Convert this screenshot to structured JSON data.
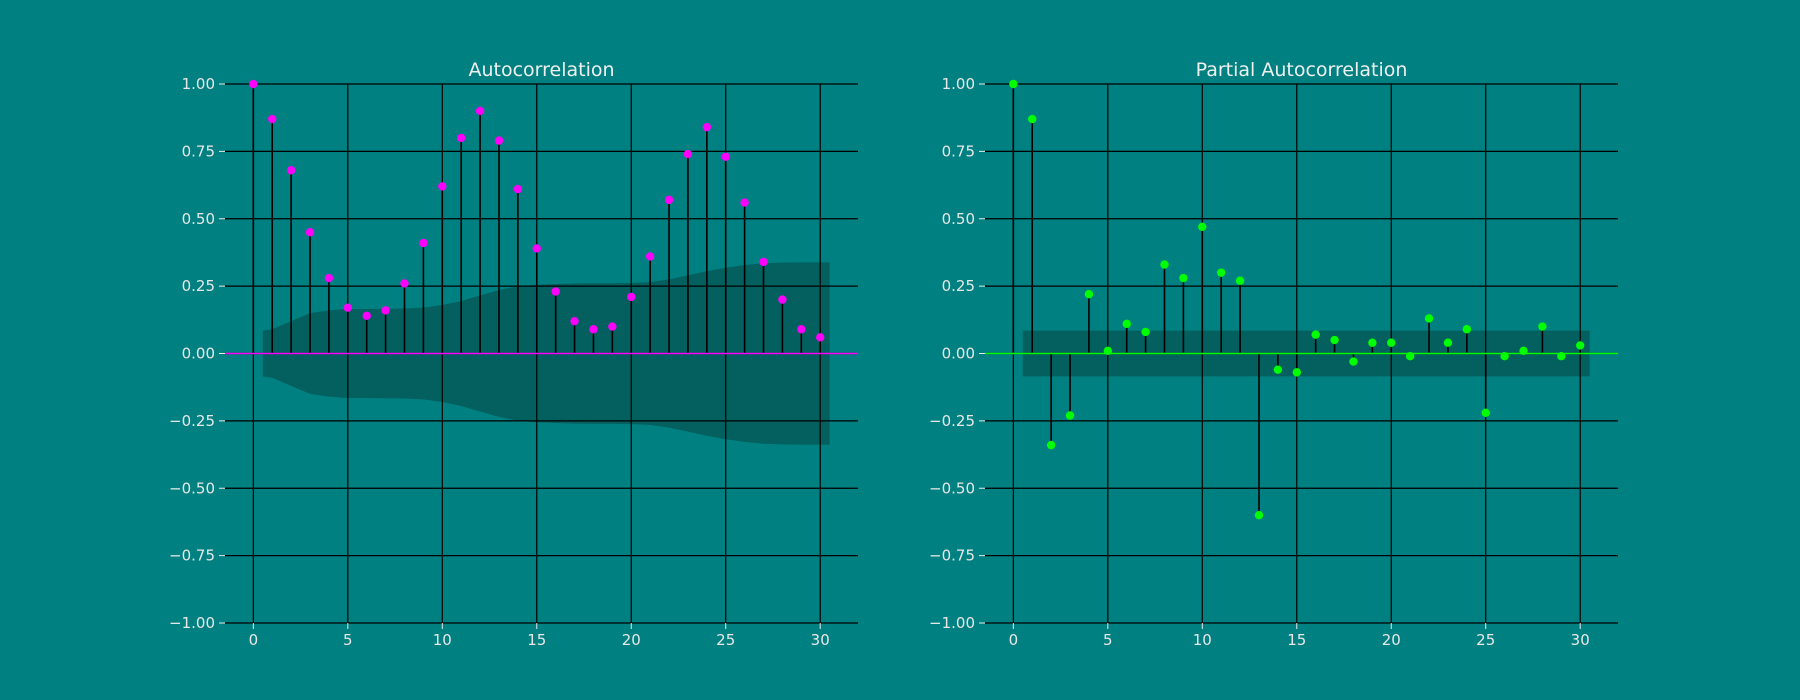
{
  "figure": {
    "background": "#008080"
  },
  "chart_data": [
    {
      "type": "stem",
      "title": "Autocorrelation",
      "xlabel": "",
      "ylabel": "",
      "xlim": [
        -1.5,
        32
      ],
      "ylim": [
        -1.0,
        1.0
      ],
      "xticks": [
        0,
        5,
        10,
        15,
        20,
        25,
        30
      ],
      "yticks": [
        -1.0,
        -0.75,
        -0.5,
        -0.25,
        0.0,
        0.25,
        0.5,
        0.75,
        1.0
      ],
      "xtick_labels": [
        "0",
        "5",
        "10",
        "15",
        "20",
        "25",
        "30"
      ],
      "ytick_labels": [
        "−1.00",
        "−0.75",
        "−0.50",
        "−0.25",
        "0.00",
        "0.25",
        "0.50",
        "0.75",
        "1.00"
      ],
      "grid": true,
      "marker_color": "#ff00ff",
      "zero_line_color": "#ff00ff",
      "band_color": "#045f5f",
      "x": [
        0,
        1,
        2,
        3,
        4,
        5,
        6,
        7,
        8,
        9,
        10,
        11,
        12,
        13,
        14,
        15,
        16,
        17,
        18,
        19,
        20,
        21,
        22,
        23,
        24,
        25,
        26,
        27,
        28,
        29,
        30
      ],
      "values": [
        1.0,
        0.87,
        0.68,
        0.45,
        0.28,
        0.17,
        0.14,
        0.16,
        0.26,
        0.41,
        0.62,
        0.8,
        0.9,
        0.79,
        0.61,
        0.39,
        0.23,
        0.12,
        0.09,
        0.1,
        0.21,
        0.36,
        0.57,
        0.74,
        0.84,
        0.73,
        0.56,
        0.34,
        0.2,
        0.09,
        0.06
      ],
      "confidence_band": {
        "x": [
          0.5,
          1,
          2,
          3,
          4,
          5,
          6,
          7,
          8,
          9,
          10,
          11,
          12,
          13,
          14,
          15,
          16,
          17,
          18,
          19,
          20,
          21,
          22,
          23,
          24,
          25,
          26,
          27,
          28,
          29,
          30,
          30.5
        ],
        "upper": [
          0.085,
          0.09,
          0.12,
          0.15,
          0.16,
          0.165,
          0.165,
          0.166,
          0.167,
          0.17,
          0.18,
          0.195,
          0.215,
          0.235,
          0.25,
          0.255,
          0.258,
          0.26,
          0.261,
          0.261,
          0.262,
          0.265,
          0.275,
          0.29,
          0.305,
          0.318,
          0.328,
          0.335,
          0.337,
          0.338,
          0.338,
          0.338
        ],
        "lower": [
          -0.085,
          -0.09,
          -0.12,
          -0.15,
          -0.16,
          -0.165,
          -0.165,
          -0.166,
          -0.167,
          -0.17,
          -0.18,
          -0.195,
          -0.215,
          -0.235,
          -0.25,
          -0.255,
          -0.258,
          -0.26,
          -0.261,
          -0.261,
          -0.262,
          -0.265,
          -0.275,
          -0.29,
          -0.305,
          -0.318,
          -0.328,
          -0.335,
          -0.337,
          -0.338,
          -0.338,
          -0.338
        ]
      }
    },
    {
      "type": "stem",
      "title": "Partial Autocorrelation",
      "xlabel": "",
      "ylabel": "",
      "xlim": [
        -1.5,
        32
      ],
      "ylim": [
        -1.0,
        1.0
      ],
      "xticks": [
        0,
        5,
        10,
        15,
        20,
        25,
        30
      ],
      "yticks": [
        -1.0,
        -0.75,
        -0.5,
        -0.25,
        0.0,
        0.25,
        0.5,
        0.75,
        1.0
      ],
      "xtick_labels": [
        "0",
        "5",
        "10",
        "15",
        "20",
        "25",
        "30"
      ],
      "ytick_labels": [
        "−1.00",
        "−0.75",
        "−0.50",
        "−0.25",
        "0.00",
        "0.25",
        "0.50",
        "0.75",
        "1.00"
      ],
      "grid": true,
      "marker_color": "#00ff00",
      "zero_line_color": "#00ff00",
      "band_color": "#045f5f",
      "x": [
        0,
        1,
        2,
        3,
        4,
        5,
        6,
        7,
        8,
        9,
        10,
        11,
        12,
        13,
        14,
        15,
        16,
        17,
        18,
        19,
        20,
        21,
        22,
        23,
        24,
        25,
        26,
        27,
        28,
        29,
        30
      ],
      "values": [
        1.0,
        0.87,
        -0.34,
        -0.23,
        0.22,
        0.01,
        0.11,
        0.08,
        0.33,
        0.28,
        0.47,
        0.3,
        0.27,
        -0.6,
        -0.06,
        -0.07,
        0.07,
        0.05,
        -0.03,
        0.04,
        0.04,
        -0.01,
        0.13,
        0.04,
        0.09,
        -0.22,
        -0.01,
        0.01,
        0.1,
        -0.01,
        0.03
      ],
      "confidence_band": {
        "x": [
          0.5,
          30.5
        ],
        "upper": [
          0.085,
          0.085
        ],
        "lower": [
          -0.085,
          -0.085
        ]
      }
    }
  ]
}
